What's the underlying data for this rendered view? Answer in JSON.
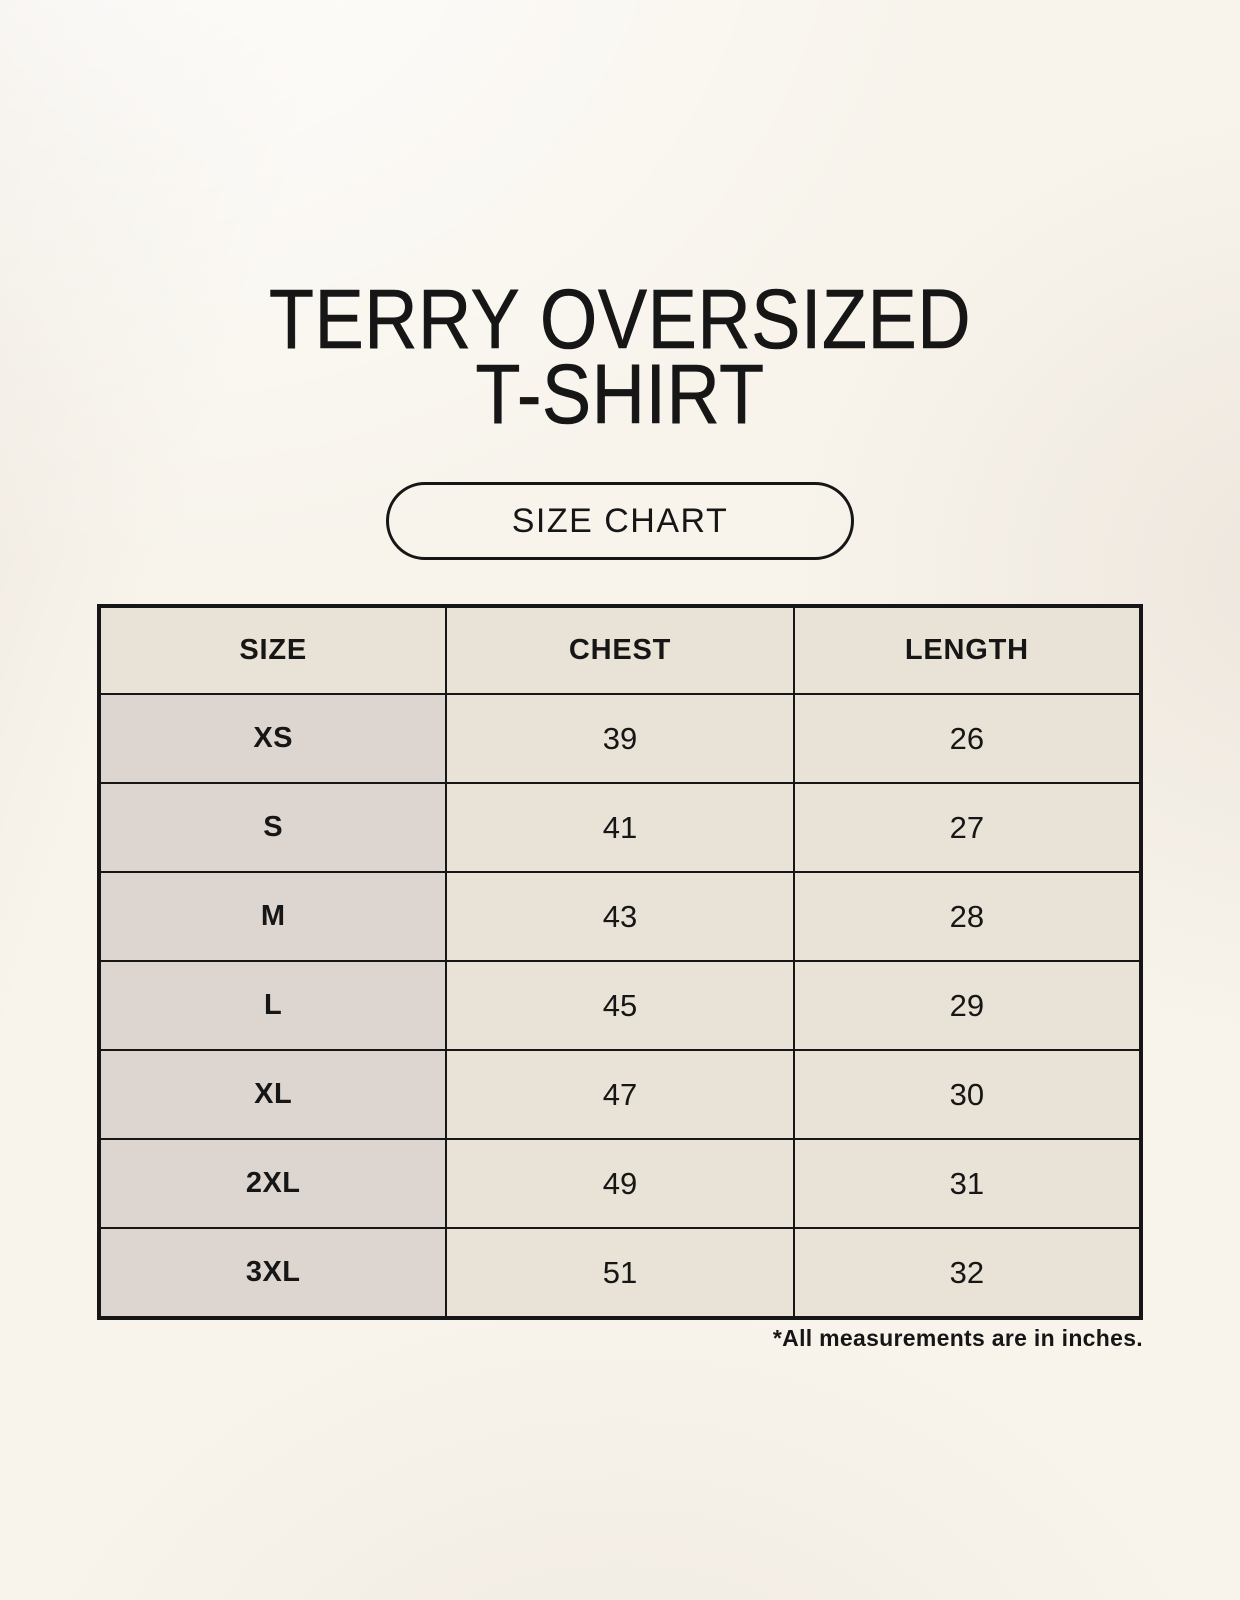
{
  "header": {
    "title_line1": "TERRY OVERSIZED",
    "title_line2": "T-SHIRT"
  },
  "size_chart_button": {
    "label": "SIZE CHART"
  },
  "chart_data": {
    "type": "table",
    "title": "TERRY OVERSIZED T-SHIRT",
    "columns": [
      "SIZE",
      "CHEST",
      "LENGTH"
    ],
    "rows": [
      [
        "XS",
        "39",
        "26"
      ],
      [
        "S",
        "41",
        "27"
      ],
      [
        "M",
        "43",
        "28"
      ],
      [
        "L",
        "45",
        "29"
      ],
      [
        "XL",
        "47",
        "30"
      ],
      [
        "2XL",
        "49",
        "31"
      ],
      [
        "3XL",
        "51",
        "32"
      ]
    ],
    "footnote": "*All measurements are in inches.",
    "units": "inches"
  },
  "colors": {
    "background": "#f8f4ec",
    "header_accent": "#eeb9a9",
    "size_column": "#ddd6d0",
    "data_cell": "#e9e2d6",
    "border": "#161616",
    "text": "#161616"
  }
}
